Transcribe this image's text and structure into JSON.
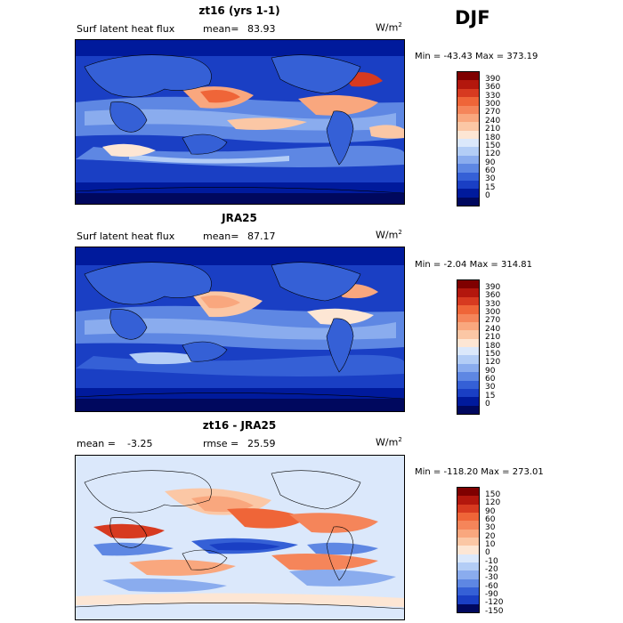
{
  "season": "DJF",
  "panels": [
    {
      "title": "zt16 (yrs 1-1)",
      "variable": "Surf latent heat flux",
      "stat_label": "mean=",
      "stat_value": "83.93",
      "units": "W/m",
      "units_exp": "2",
      "min_label": "Min =",
      "min_value": "-43.43",
      "max_label": "Max =",
      "max_value": "373.19",
      "colorbar_levels": [
        "390",
        "360",
        "330",
        "300",
        "270",
        "240",
        "210",
        "180",
        "150",
        "120",
        "90",
        "60",
        "30",
        "15",
        "0"
      ]
    },
    {
      "title": "JRA25",
      "variable": "Surf latent heat flux",
      "stat_label": "mean=",
      "stat_value": "87.17",
      "units": "W/m",
      "units_exp": "2",
      "min_label": "Min =",
      "min_value": "-2.04",
      "max_label": "Max =",
      "max_value": "314.81",
      "colorbar_levels": [
        "390",
        "360",
        "330",
        "300",
        "270",
        "240",
        "210",
        "180",
        "150",
        "120",
        "90",
        "60",
        "30",
        "15",
        "0"
      ]
    },
    {
      "title": "zt16 - JRA25",
      "mean_label": "mean =",
      "mean_value": "-3.25",
      "rmse_label": "rmse =",
      "rmse_value": "25.59",
      "units": "W/m",
      "units_exp": "2",
      "min_label": "Min =",
      "min_value": "-118.20",
      "max_label": "Max =",
      "max_value": "273.01",
      "colorbar_levels": [
        "150",
        "120",
        "90",
        "60",
        "30",
        "20",
        "10",
        "0",
        "-10",
        "-20",
        "-30",
        "-60",
        "-90",
        "-120",
        "-150"
      ]
    }
  ],
  "colors": {
    "abs_scale": [
      "#7f0000",
      "#b3170d",
      "#d73a20",
      "#ef6538",
      "#f5855a",
      "#f9a77e",
      "#fbc7a5",
      "#fde6d4",
      "#dbe8fb",
      "#b3cdf6",
      "#8aacee",
      "#5e87e3",
      "#3560d6",
      "#1a3fc4",
      "#001a9c",
      "#00085e"
    ],
    "diff_scale": [
      "#7f0000",
      "#b3170d",
      "#d73a20",
      "#ef6538",
      "#f5855a",
      "#f9a77e",
      "#fbc7a5",
      "#fde6d4",
      "#dbe8fb",
      "#b3cdf6",
      "#8aacee",
      "#5e87e3",
      "#3560d6",
      "#1a3fc4",
      "#00085e"
    ]
  }
}
